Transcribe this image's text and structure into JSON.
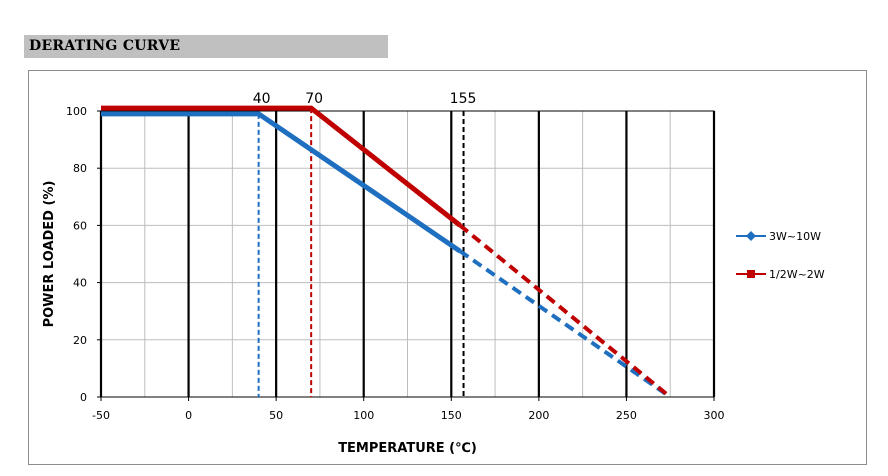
{
  "header": {
    "title": "DERATING CURVE",
    "color": "#c0c0c0"
  },
  "chart_data": {
    "type": "line",
    "xlabel": "TEMPERATURE (℃)",
    "ylabel": "POWER LOADED (%)",
    "xlim": [
      -50,
      300
    ],
    "ylim": [
      0,
      100
    ],
    "xticks": [
      "-50",
      "0",
      "50",
      "100",
      "150",
      "200",
      "250",
      "300"
    ],
    "yticks": [
      "0",
      "20",
      "40",
      "60",
      "80",
      "100"
    ],
    "grid": true,
    "legend_position": "right",
    "series": [
      {
        "name": "3W~10W",
        "color": "#1f6fc0",
        "marker": "diamond",
        "points": [
          [
            -50,
            99
          ],
          [
            40,
            99
          ],
          [
            155,
            51
          ],
          [
            275,
            0
          ]
        ],
        "solid_until_x": 155,
        "drop_x": 40
      },
      {
        "name": "1/2W~2W",
        "color": "#c00000",
        "marker": "square",
        "points": [
          [
            -50,
            101
          ],
          [
            70,
            101
          ],
          [
            155,
            60
          ],
          [
            275,
            0
          ]
        ],
        "solid_until_x": 155,
        "drop_x": 70
      }
    ],
    "markers": [
      {
        "label": "40",
        "x": 40
      },
      {
        "label": "70",
        "x": 70
      },
      {
        "label": "155",
        "x": 155
      }
    ]
  }
}
